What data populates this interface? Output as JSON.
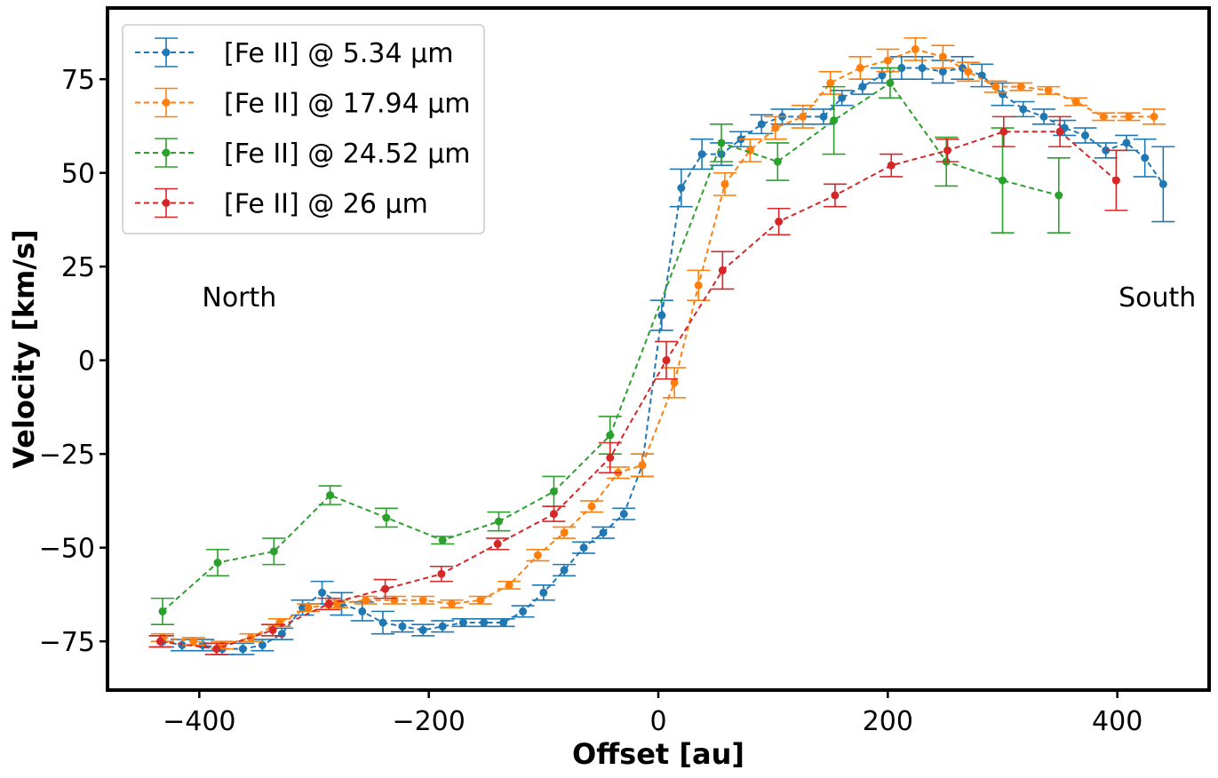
{
  "chart_data": {
    "type": "line",
    "xlabel": "Offset [au]",
    "ylabel": "Velocity [km/s]",
    "xlim": [
      -480,
      480
    ],
    "ylim": [
      -88,
      94
    ],
    "xticks": [
      -400,
      -200,
      0,
      200,
      400
    ],
    "xtick_labels": [
      "−400",
      "−200",
      "0",
      "200",
      "400"
    ],
    "yticks": [
      -75,
      -50,
      -25,
      0,
      25,
      50,
      75
    ],
    "ytick_labels": [
      "−75",
      "−50",
      "−25",
      "0",
      "25",
      "50",
      "75"
    ],
    "grid": false,
    "legend_position": "top-left",
    "annotations": [
      {
        "text": "North",
        "x": -400,
        "y": 17
      },
      {
        "text": "South",
        "x": 400,
        "y": 17
      }
    ],
    "series": [
      {
        "name": "[Fe II] @ 5.34 μm",
        "color": "#1f77b4",
        "x": [
          -432,
          -415,
          -397,
          -380,
          -362,
          -345,
          -328,
          -310,
          -293,
          -276,
          -258,
          -240,
          -223,
          -205,
          -188,
          -170,
          -152,
          -135,
          -118,
          -100,
          -82,
          -65,
          -48,
          -30,
          -14,
          3,
          20,
          38,
          55,
          72,
          90,
          108,
          126,
          144,
          160,
          178,
          195,
          212,
          230,
          248,
          265,
          282,
          300,
          318,
          336,
          354,
          372,
          390,
          408,
          424,
          440
        ],
        "y": [
          -75,
          -76,
          -76,
          -77,
          -77,
          -76,
          -73,
          -66,
          -62,
          -65,
          -67,
          -70,
          -71,
          -72,
          -71,
          -70,
          -70,
          -70,
          -67,
          -62,
          -56,
          -50,
          -46,
          -41,
          -28,
          12,
          46,
          55,
          55,
          59,
          63,
          65,
          65,
          65,
          70,
          73,
          76,
          78,
          78,
          77,
          78,
          76,
          71,
          67,
          65,
          62,
          60,
          56,
          58,
          54,
          47
        ],
        "err": [
          1.5,
          1.5,
          1.5,
          1.5,
          1.5,
          1.5,
          1.5,
          2,
          3,
          3,
          2.5,
          3,
          1.5,
          1.5,
          1.5,
          1,
          1,
          1,
          1.5,
          2,
          1.5,
          1.5,
          1.5,
          1.5,
          3,
          4,
          5,
          4,
          3,
          2,
          2.5,
          2,
          2,
          2,
          2,
          2,
          2,
          3,
          3,
          3,
          3,
          3,
          3,
          2,
          2,
          2,
          2,
          2,
          2,
          5,
          10
        ]
      },
      {
        "name": "[Fe II] @ 17.94 μm",
        "color": "#ff7f0e",
        "x": [
          -432,
          -405,
          -380,
          -355,
          -330,
          -305,
          -280,
          -255,
          -230,
          -205,
          -180,
          -155,
          -130,
          -105,
          -82,
          -58,
          -35,
          -14,
          14,
          35,
          58,
          80,
          102,
          126,
          150,
          176,
          200,
          224,
          248,
          270,
          294,
          316,
          340,
          364,
          388,
          410,
          432
        ],
        "y": [
          -74,
          -75,
          -76,
          -74,
          -70,
          -66,
          -65,
          -64,
          -64,
          -64,
          -65,
          -64,
          -60,
          -52,
          -46,
          -39,
          -30,
          -28,
          -6,
          20,
          47,
          56,
          62,
          65,
          74,
          78,
          80,
          83,
          81,
          77,
          73,
          73,
          72,
          69,
          65,
          65,
          65
        ],
        "err": [
          1,
          1,
          1,
          1,
          1,
          1,
          1,
          1,
          1,
          1,
          1,
          1,
          1,
          1.5,
          1.5,
          1.5,
          1.5,
          3,
          4,
          4,
          3,
          3,
          3,
          3,
          3,
          3,
          3,
          3,
          3,
          2.5,
          1.5,
          1,
          1,
          1,
          1,
          1,
          2
        ]
      },
      {
        "name": "[Fe II] @ 24.52 μm",
        "color": "#2ca02c",
        "x": [
          -432,
          -384,
          -335,
          -286,
          -237,
          -188,
          -139,
          -91,
          -42,
          55,
          104,
          153,
          202,
          251,
          300,
          349
        ],
        "y": [
          -67,
          -54,
          -51,
          -36,
          -42,
          -48,
          -43,
          -35,
          -20,
          58,
          53,
          64,
          74,
          53,
          48,
          44
        ],
        "err": [
          3.5,
          3.5,
          3.5,
          2.5,
          2.5,
          1,
          2.5,
          4,
          5,
          5,
          5,
          9,
          4,
          6.5,
          14,
          10
        ]
      },
      {
        "name": "[Fe II] @ 26 μm",
        "color": "#d62728",
        "x": [
          -434,
          -385,
          -336,
          -287,
          -238,
          -189,
          -140,
          -91,
          -42,
          7,
          56,
          105,
          154,
          203,
          252,
          301,
          350,
          399
        ],
        "y": [
          -75,
          -77,
          -72,
          -65,
          -61,
          -57,
          -49,
          -41,
          -26,
          0,
          24,
          37,
          44,
          52,
          56,
          61,
          61,
          48
        ],
        "err": [
          1.5,
          1.5,
          1.5,
          1.5,
          2.5,
          2,
          1.5,
          2,
          4,
          5,
          5,
          3.5,
          3,
          3,
          3,
          4,
          4,
          8
        ]
      }
    ]
  }
}
